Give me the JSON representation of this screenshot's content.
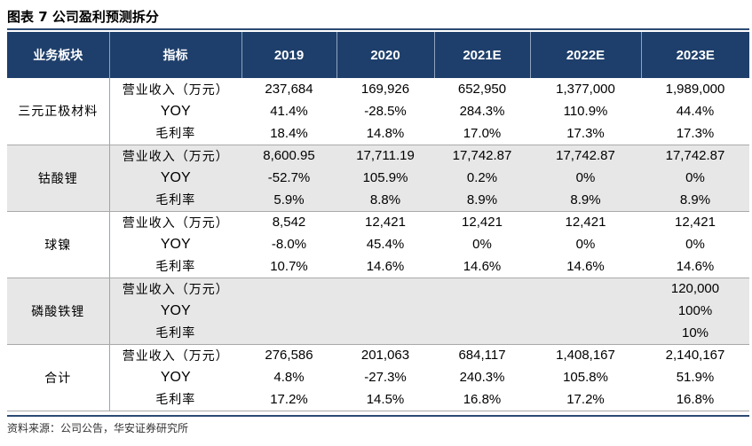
{
  "title": "图表 7 公司盈利预测拆分",
  "header": {
    "segment": "业务板块",
    "metric": "指标",
    "years": [
      "2019",
      "2020",
      "2021E",
      "2022E",
      "2023E"
    ]
  },
  "groups": [
    {
      "name": "三元正极材料",
      "rows": [
        {
          "metric": "营业收入（万元）",
          "values": [
            "237,684",
            "169,926",
            "652,950",
            "1,377,000",
            "1,989,000"
          ]
        },
        {
          "metric": "YOY",
          "values": [
            "41.4%",
            "-28.5%",
            "284.3%",
            "110.9%",
            "44.4%"
          ]
        },
        {
          "metric": "毛利率",
          "values": [
            "18.4%",
            "14.8%",
            "17.0%",
            "17.3%",
            "17.3%"
          ]
        }
      ]
    },
    {
      "name": "钴酸锂",
      "rows": [
        {
          "metric": "营业收入（万元）",
          "values": [
            "8,600.95",
            "17,711.19",
            "17,742.87",
            "17,742.87",
            "17,742.87"
          ]
        },
        {
          "metric": "YOY",
          "values": [
            "-52.7%",
            "105.9%",
            "0.2%",
            "0%",
            "0%"
          ]
        },
        {
          "metric": "毛利率",
          "values": [
            "5.9%",
            "8.8%",
            "8.9%",
            "8.9%",
            "8.9%"
          ]
        }
      ]
    },
    {
      "name": "球镍",
      "rows": [
        {
          "metric": "营业收入（万元）",
          "values": [
            "8,542",
            "12,421",
            "12,421",
            "12,421",
            "12,421"
          ]
        },
        {
          "metric": "YOY",
          "values": [
            "-8.0%",
            "45.4%",
            "0%",
            "0%",
            "0%"
          ]
        },
        {
          "metric": "毛利率",
          "values": [
            "10.7%",
            "14.6%",
            "14.6%",
            "14.6%",
            "14.6%"
          ]
        }
      ]
    },
    {
      "name": "磷酸铁锂",
      "rows": [
        {
          "metric": "营业收入（万元）",
          "values": [
            "",
            "",
            "",
            "",
            "120,000"
          ]
        },
        {
          "metric": "YOY",
          "values": [
            "",
            "",
            "",
            "",
            "100%"
          ]
        },
        {
          "metric": "毛利率",
          "values": [
            "",
            "",
            "",
            "",
            "10%"
          ]
        }
      ]
    },
    {
      "name": "合计",
      "rows": [
        {
          "metric": "营业收入（万元）",
          "values": [
            "276,586",
            "201,063",
            "684,117",
            "1,408,167",
            "2,140,167"
          ]
        },
        {
          "metric": "YOY",
          "values": [
            "4.8%",
            "-27.3%",
            "240.3%",
            "105.8%",
            "51.9%"
          ]
        },
        {
          "metric": "毛利率",
          "values": [
            "17.2%",
            "14.5%",
            "16.8%",
            "17.2%",
            "16.8%"
          ]
        }
      ]
    }
  ],
  "source": "资料来源：公司公告，华安证券研究所"
}
